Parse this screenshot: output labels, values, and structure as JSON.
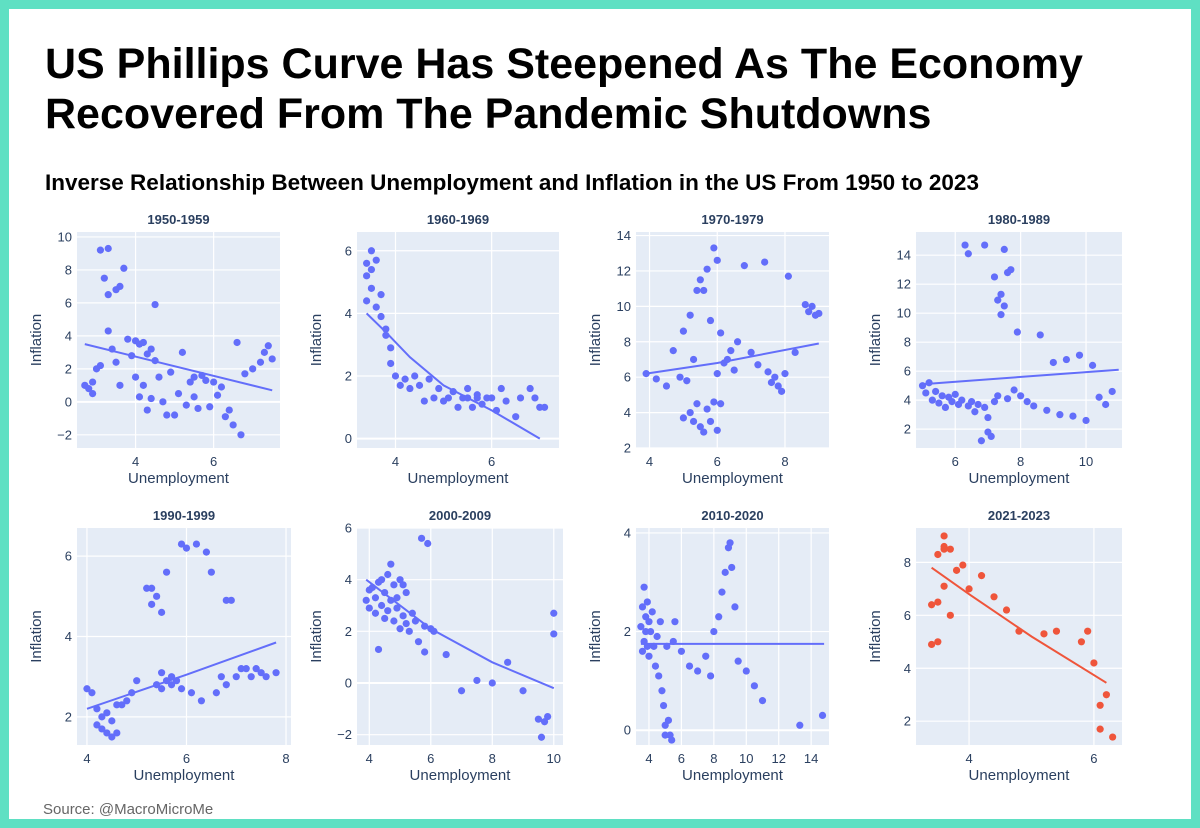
{
  "header": {
    "title_line1": "US Phillips Curve Has Steepened As The Economy",
    "title_line2": "Recovered From The Pandemic Shutdowns",
    "subtitle": "Inverse Relationship Between Unemployment and Inflation in the US From 1950 to 2023"
  },
  "source": "Source: @MacroMicroMe",
  "colors": {
    "frame": "#5fe0c3",
    "plot_bg": "#e5ecf6",
    "blue": "#636efa",
    "red": "#ef553b",
    "text": "#2a3f5f"
  },
  "chart_data": [
    {
      "type": "scatter",
      "title": "1950-1959",
      "xlabel": "Unemployment",
      "ylabel": "Inflation",
      "xlim": [
        2.5,
        7.7
      ],
      "ylim": [
        -2.8,
        10.3
      ],
      "xticks": [
        4,
        6
      ],
      "yticks": [
        -2,
        0,
        2,
        4,
        6,
        8,
        10
      ],
      "color": "#636efa",
      "trend": [
        [
          2.7,
          3.5
        ],
        [
          7.5,
          0.7
        ]
      ],
      "x": [
        2.7,
        2.8,
        2.9,
        2.9,
        3.0,
        3.1,
        3.1,
        3.2,
        3.3,
        3.3,
        3.3,
        3.4,
        3.5,
        3.5,
        3.6,
        3.6,
        3.7,
        3.8,
        3.9,
        4.0,
        4.0,
        4.1,
        4.1,
        4.2,
        4.2,
        4.3,
        4.3,
        4.4,
        4.4,
        4.5,
        4.5,
        4.6,
        4.7,
        4.8,
        4.9,
        5.0,
        5.1,
        5.2,
        5.3,
        5.4,
        5.5,
        5.5,
        5.6,
        5.7,
        5.8,
        5.9,
        6.0,
        6.1,
        6.2,
        6.3,
        6.4,
        6.5,
        6.6,
        6.7,
        6.8,
        7.0,
        7.2,
        7.3,
        7.4,
        7.5
      ],
      "y": [
        1.0,
        0.8,
        1.2,
        0.5,
        2.0,
        9.2,
        2.2,
        7.5,
        6.5,
        9.3,
        4.3,
        3.2,
        6.8,
        2.4,
        7.0,
        1.0,
        8.1,
        3.8,
        2.8,
        3.7,
        1.5,
        3.5,
        0.3,
        3.6,
        1.0,
        2.9,
        -0.5,
        3.2,
        0.2,
        2.5,
        5.9,
        1.5,
        0.0,
        -0.8,
        1.8,
        -0.8,
        0.5,
        3.0,
        -0.2,
        1.2,
        1.5,
        0.3,
        -0.4,
        1.6,
        1.3,
        -0.3,
        1.2,
        0.4,
        0.9,
        -0.9,
        -0.5,
        -1.4,
        3.6,
        -2.0,
        1.7,
        2.0,
        2.4,
        3.0,
        3.4,
        2.6
      ]
    },
    {
      "type": "scatter",
      "title": "1960-1969",
      "xlabel": "Unemployment",
      "ylabel": "Inflation",
      "xlim": [
        3.2,
        7.4
      ],
      "ylim": [
        -0.3,
        6.6
      ],
      "xticks": [
        4,
        6
      ],
      "yticks": [
        0,
        2,
        4,
        6
      ],
      "color": "#636efa",
      "trend": [
        [
          3.4,
          4.0
        ],
        [
          3.8,
          3.4
        ],
        [
          4.3,
          2.6
        ],
        [
          5.0,
          1.7
        ],
        [
          6.0,
          0.9
        ],
        [
          7.0,
          0.0
        ]
      ],
      "x": [
        3.4,
        3.4,
        3.4,
        3.5,
        3.5,
        3.5,
        3.6,
        3.6,
        3.7,
        3.7,
        3.8,
        3.8,
        3.9,
        3.9,
        4.0,
        4.1,
        4.2,
        4.3,
        4.4,
        4.5,
        4.6,
        4.7,
        4.8,
        4.9,
        5.0,
        5.1,
        5.2,
        5.3,
        5.4,
        5.5,
        5.5,
        5.6,
        5.7,
        5.7,
        5.8,
        5.9,
        6.0,
        6.1,
        6.2,
        6.3,
        6.5,
        6.6,
        6.8,
        6.9,
        7.0,
        7.1
      ],
      "y": [
        4.4,
        5.2,
        5.6,
        4.8,
        6.0,
        5.4,
        4.2,
        5.7,
        3.9,
        4.6,
        3.5,
        3.3,
        2.9,
        2.4,
        2.0,
        1.7,
        1.9,
        1.6,
        2.0,
        1.7,
        1.2,
        1.9,
        1.3,
        1.6,
        1.2,
        1.3,
        1.5,
        1.0,
        1.3,
        1.6,
        1.3,
        1.0,
        1.4,
        1.3,
        1.1,
        1.3,
        1.3,
        0.9,
        1.6,
        1.2,
        0.7,
        1.3,
        1.6,
        1.3,
        1.0,
        1.0
      ]
    },
    {
      "type": "scatter",
      "title": "1970-1979",
      "xlabel": "Unemployment",
      "ylabel": "Inflation",
      "xlim": [
        3.6,
        9.3
      ],
      "ylim": [
        2.0,
        14.2
      ],
      "xticks": [
        4,
        6,
        8
      ],
      "yticks": [
        2,
        4,
        6,
        8,
        10,
        12,
        14
      ],
      "color": "#636efa",
      "trend": [
        [
          3.9,
          6.2
        ],
        [
          6.0,
          6.8
        ],
        [
          9.0,
          7.9
        ]
      ],
      "x": [
        3.9,
        4.2,
        4.5,
        4.7,
        4.9,
        5.0,
        5.0,
        5.1,
        5.2,
        5.2,
        5.3,
        5.3,
        5.4,
        5.4,
        5.5,
        5.5,
        5.6,
        5.6,
        5.7,
        5.7,
        5.8,
        5.8,
        5.9,
        5.9,
        6.0,
        6.0,
        6.0,
        6.1,
        6.1,
        6.2,
        6.3,
        6.4,
        6.5,
        6.6,
        6.8,
        7.0,
        7.2,
        7.4,
        7.5,
        7.6,
        7.7,
        7.8,
        7.9,
        8.0,
        8.1,
        8.3,
        8.6,
        8.7,
        8.8,
        8.9,
        9.0
      ],
      "y": [
        6.2,
        5.9,
        5.5,
        7.5,
        6.0,
        3.7,
        8.6,
        5.8,
        4.0,
        9.5,
        3.5,
        7.0,
        10.9,
        4.5,
        3.2,
        11.5,
        2.9,
        10.9,
        4.2,
        12.1,
        3.5,
        9.2,
        4.6,
        13.3,
        3.0,
        12.6,
        6.2,
        4.5,
        8.5,
        6.8,
        7.0,
        7.5,
        6.4,
        8.0,
        12.3,
        7.4,
        6.7,
        12.5,
        6.3,
        5.7,
        6.0,
        5.5,
        5.2,
        6.2,
        11.7,
        7.4,
        10.1,
        9.7,
        10.0,
        9.5,
        9.6
      ]
    },
    {
      "type": "scatter",
      "title": "1980-1989",
      "xlabel": "Unemployment",
      "ylabel": "Inflation",
      "xlim": [
        4.8,
        11.1
      ],
      "ylim": [
        0.7,
        15.6
      ],
      "xticks": [
        6,
        8,
        10
      ],
      "yticks": [
        2,
        4,
        6,
        8,
        10,
        12,
        14
      ],
      "color": "#636efa",
      "trend": [
        [
          5.0,
          5.1
        ],
        [
          11.0,
          6.1
        ]
      ],
      "x": [
        5.0,
        5.1,
        5.2,
        5.3,
        5.4,
        5.5,
        5.6,
        5.7,
        5.8,
        5.9,
        6.0,
        6.1,
        6.2,
        6.3,
        6.4,
        6.4,
        6.5,
        6.6,
        6.7,
        6.8,
        6.9,
        6.9,
        7.0,
        7.0,
        7.1,
        7.2,
        7.2,
        7.3,
        7.3,
        7.4,
        7.4,
        7.5,
        7.5,
        7.6,
        7.6,
        7.7,
        7.8,
        7.9,
        8.0,
        8.2,
        8.4,
        8.6,
        8.8,
        9.0,
        9.2,
        9.4,
        9.6,
        9.8,
        10.0,
        10.2,
        10.4,
        10.6,
        10.8
      ],
      "y": [
        5.0,
        4.5,
        5.2,
        4.0,
        4.6,
        3.8,
        4.3,
        3.5,
        4.2,
        3.9,
        4.4,
        3.7,
        4.0,
        14.7,
        14.1,
        3.6,
        3.9,
        3.2,
        3.7,
        1.2,
        3.5,
        14.7,
        1.8,
        2.8,
        1.5,
        12.5,
        3.9,
        10.9,
        4.3,
        11.3,
        9.9,
        14.4,
        10.5,
        12.8,
        4.1,
        13.0,
        4.7,
        8.7,
        4.3,
        3.9,
        3.6,
        8.5,
        3.3,
        6.6,
        3.0,
        6.8,
        2.9,
        7.1,
        2.6,
        6.4,
        4.2,
        3.7,
        4.6
      ]
    },
    {
      "type": "scatter",
      "title": "1990-1999",
      "xlabel": "Unemployment",
      "ylabel": "Inflation",
      "xlim": [
        3.8,
        8.1
      ],
      "ylim": [
        1.3,
        6.7
      ],
      "xticks": [
        4,
        6,
        8
      ],
      "yticks": [
        2,
        4,
        6
      ],
      "color": "#636efa",
      "trend": [
        [
          4.0,
          2.2
        ],
        [
          6.0,
          3.05
        ],
        [
          7.8,
          3.85
        ]
      ],
      "x": [
        4.0,
        4.1,
        4.2,
        4.2,
        4.3,
        4.3,
        4.4,
        4.4,
        4.5,
        4.5,
        4.6,
        4.6,
        4.7,
        4.8,
        4.9,
        5.0,
        5.2,
        5.3,
        5.3,
        5.4,
        5.4,
        5.5,
        5.5,
        5.5,
        5.6,
        5.6,
        5.7,
        5.7,
        5.8,
        5.9,
        5.9,
        6.0,
        6.1,
        6.2,
        6.3,
        6.4,
        6.5,
        6.6,
        6.7,
        6.8,
        6.8,
        6.9,
        7.0,
        7.1,
        7.2,
        7.3,
        7.4,
        7.5,
        7.6,
        7.8
      ],
      "y": [
        2.7,
        2.6,
        2.2,
        1.8,
        1.7,
        2.0,
        1.6,
        2.1,
        1.5,
        1.9,
        1.6,
        2.3,
        2.3,
        2.4,
        2.6,
        2.9,
        5.2,
        5.2,
        4.8,
        2.8,
        5.0,
        2.7,
        3.1,
        4.6,
        2.9,
        5.6,
        2.8,
        3.0,
        2.9,
        6.3,
        2.7,
        6.2,
        2.6,
        6.3,
        2.4,
        6.1,
        5.6,
        2.6,
        3.0,
        4.9,
        2.8,
        4.9,
        3.0,
        3.2,
        3.2,
        3.0,
        3.2,
        3.1,
        3.0,
        3.1
      ]
    },
    {
      "type": "scatter",
      "title": "2000-2009",
      "xlabel": "Unemployment",
      "ylabel": "Inflation",
      "xlim": [
        3.6,
        10.3
      ],
      "ylim": [
        -2.4,
        6.0
      ],
      "xticks": [
        4,
        6,
        8,
        10
      ],
      "yticks": [
        -2,
        0,
        2,
        4,
        6
      ],
      "color": "#636efa",
      "trend": [
        [
          3.9,
          4.0
        ],
        [
          6.0,
          2.1
        ],
        [
          8.0,
          0.8
        ],
        [
          10.0,
          -0.2
        ]
      ],
      "x": [
        3.9,
        4.0,
        4.0,
        4.1,
        4.2,
        4.2,
        4.3,
        4.3,
        4.4,
        4.4,
        4.5,
        4.5,
        4.6,
        4.6,
        4.7,
        4.7,
        4.8,
        4.8,
        4.9,
        4.9,
        5.0,
        5.0,
        5.1,
        5.1,
        5.2,
        5.2,
        5.3,
        5.4,
        5.5,
        5.6,
        5.7,
        5.8,
        5.8,
        5.9,
        6.0,
        6.1,
        6.5,
        7.0,
        7.5,
        8.0,
        8.5,
        9.0,
        9.5,
        9.6,
        9.7,
        9.8,
        10.0,
        10.0
      ],
      "y": [
        3.2,
        3.6,
        2.9,
        3.7,
        3.3,
        2.7,
        3.9,
        1.3,
        3.0,
        4.0,
        2.5,
        3.5,
        2.8,
        4.2,
        3.2,
        4.6,
        2.4,
        3.8,
        2.9,
        3.3,
        4.0,
        2.1,
        2.6,
        3.8,
        2.3,
        3.5,
        2.0,
        2.7,
        2.4,
        1.6,
        5.6,
        1.2,
        2.2,
        5.4,
        2.1,
        2.0,
        1.1,
        -0.3,
        0.1,
        0.0,
        0.8,
        -0.3,
        -1.4,
        -2.1,
        -1.5,
        -1.3,
        2.7,
        1.9
      ]
    },
    {
      "type": "scatter",
      "title": "2010-2020",
      "xlabel": "Unemployment",
      "ylabel": "Inflation",
      "xlim": [
        3.2,
        15.1
      ],
      "ylim": [
        -0.3,
        4.1
      ],
      "xticks": [
        4,
        6,
        8,
        10,
        12,
        14
      ],
      "yticks": [
        0,
        2,
        4
      ],
      "color": "#636efa",
      "trend": [
        [
          3.5,
          1.75
        ],
        [
          14.8,
          1.75
        ]
      ],
      "x": [
        3.5,
        3.6,
        3.6,
        3.7,
        3.7,
        3.8,
        3.8,
        3.9,
        3.9,
        4.0,
        4.0,
        4.1,
        4.2,
        4.3,
        4.4,
        4.5,
        4.6,
        4.7,
        4.8,
        4.9,
        5.0,
        5.0,
        5.1,
        5.2,
        5.3,
        5.4,
        5.5,
        5.6,
        6.0,
        6.5,
        7.0,
        7.5,
        7.8,
        8.0,
        8.3,
        8.5,
        8.7,
        8.9,
        9.0,
        9.1,
        9.3,
        9.5,
        10.0,
        10.5,
        11.0,
        13.3,
        14.7
      ],
      "y": [
        2.1,
        2.5,
        1.6,
        2.9,
        1.8,
        2.3,
        2.0,
        2.6,
        1.7,
        2.2,
        1.5,
        2.0,
        2.4,
        1.7,
        1.3,
        1.9,
        1.1,
        2.2,
        0.8,
        0.5,
        0.1,
        -0.1,
        1.7,
        0.2,
        -0.1,
        -0.2,
        1.8,
        2.2,
        1.6,
        1.3,
        1.2,
        1.5,
        1.1,
        2.0,
        2.3,
        2.8,
        3.2,
        3.7,
        3.8,
        3.3,
        2.5,
        1.4,
        1.2,
        0.9,
        0.6,
        0.1,
        0.3
      ]
    },
    {
      "type": "scatter",
      "title": "2021-2023",
      "xlabel": "Unemployment",
      "ylabel": "Inflation",
      "xlim": [
        3.15,
        6.45
      ],
      "ylim": [
        1.1,
        9.3
      ],
      "xticks": [
        4,
        6
      ],
      "yticks": [
        2,
        4,
        6,
        8
      ],
      "color": "#ef553b",
      "trend": [
        [
          3.4,
          7.8
        ],
        [
          4.0,
          6.8
        ],
        [
          5.0,
          5.2
        ],
        [
          6.2,
          3.45
        ]
      ],
      "x": [
        3.4,
        3.4,
        3.5,
        3.5,
        3.5,
        3.6,
        3.6,
        3.6,
        3.6,
        3.7,
        3.7,
        3.8,
        3.9,
        4.0,
        4.2,
        4.4,
        4.6,
        4.8,
        5.2,
        5.4,
        5.8,
        5.9,
        6.0,
        6.1,
        6.1,
        6.2,
        6.3
      ],
      "y": [
        4.9,
        6.4,
        8.3,
        6.5,
        5.0,
        8.5,
        9.0,
        8.6,
        7.1,
        8.5,
        6.0,
        7.7,
        7.9,
        7.0,
        7.5,
        6.7,
        6.2,
        5.4,
        5.3,
        5.4,
        5.0,
        5.4,
        4.2,
        2.6,
        1.7,
        3.0,
        1.4
      ]
    }
  ]
}
